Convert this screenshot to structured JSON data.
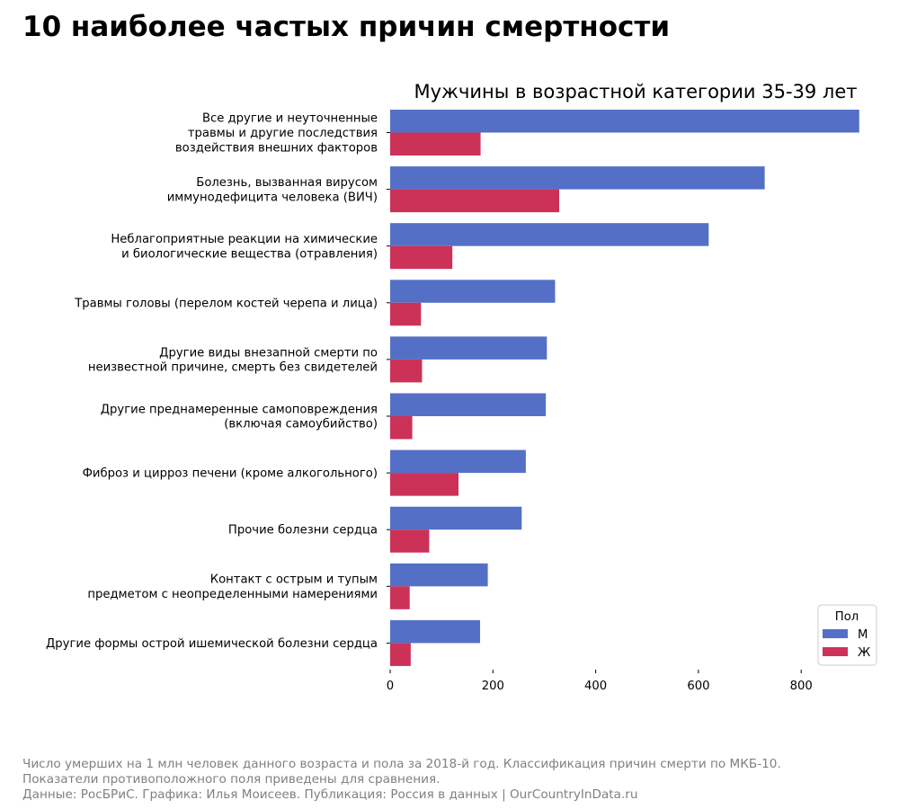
{
  "page": {
    "title": "10 наиболее частых причин смертности",
    "footnote": [
      "Число умерших на 1 млн человек данного возраста и пола за 2018-й год. Классификация причин смерти по МКБ-10.",
      "Показатели противоположного поля приведены для сравнения.",
      "Данные: РосБРиС. Графика: Илья Моисеев. Публикация: Россия в данных | OurCountryInData.ru"
    ]
  },
  "chart_data": {
    "type": "bar",
    "orientation": "horizontal",
    "title": "Мужчины в возрастной категории 35-39 лет",
    "xlabel": "",
    "ylabel": "",
    "xlim": [
      0,
      950
    ],
    "x_ticks": [
      "0",
      "200",
      "400",
      "600",
      "800"
    ],
    "grid": false,
    "legend": {
      "title": "Пол",
      "position": "bottom-right"
    },
    "categories": [
      [
        "Все другие и неуточненные",
        "травмы и другие последствия",
        "воздействия внешних факторов"
      ],
      [
        "Болезнь, вызванная вирусом",
        "иммунодефицита человека (ВИЧ)"
      ],
      [
        "Неблагоприятные реакции на химические",
        "и биологические вещества (отравления)"
      ],
      [
        "Травмы головы (перелом костей черепа и лица)"
      ],
      [
        "Другие виды внезапной смерти по",
        "неизвестной причине, смерть без свидетелей"
      ],
      [
        "Другие преднамеренные самоповреждения",
        "(включая самоубийство)"
      ],
      [
        "Фиброз и цирроз печени (кроме алкогольного)"
      ],
      [
        "Прочие болезни сердца"
      ],
      [
        "Контакт с острым и тупым",
        "предметом с неопределенными намерениями"
      ],
      [
        "Другие формы острой ишемической болезни сердца"
      ]
    ],
    "series": [
      {
        "name": "М",
        "color": "#5470c6",
        "values": [
          913,
          729,
          620,
          321,
          305,
          303,
          264,
          256,
          190,
          175
        ]
      },
      {
        "name": "Ж",
        "color": "#cc3158",
        "values": [
          176,
          329,
          121,
          60,
          62,
          43,
          133,
          76,
          38,
          40
        ]
      }
    ]
  }
}
